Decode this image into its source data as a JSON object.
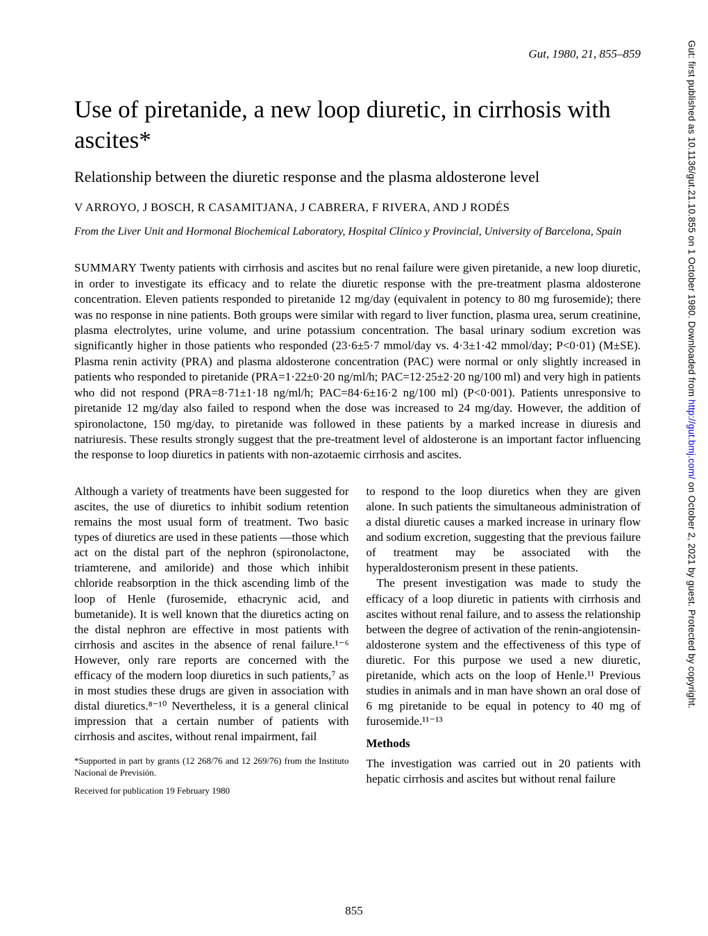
{
  "citation": "Gut, 1980, 21, 855–859",
  "title": "Use of piretanide, a new loop diuretic, in cirrhosis with ascites*",
  "subtitle": "Relationship between the diuretic response and the plasma aldosterone level",
  "authors": "V ARROYO, J BOSCH, R CASAMITJANA, J CABRERA, F RIVERA, AND J RODÉS",
  "affiliation": "From the Liver Unit and Hormonal Biochemical Laboratory, Hospital Clínico y Provincial, University of Barcelona, Spain",
  "summary_label": "SUMMARY",
  "summary_text": "   Twenty patients with cirrhosis and ascites but no renal failure were given piretanide, a new loop diuretic, in order to investigate its efficacy and to relate the diuretic response with the pre-treatment plasma aldosterone concentration. Eleven patients responded to piretanide 12 mg/day (equivalent in potency to 80 mg furosemide); there was no response in nine patients. Both groups were similar with regard to liver function, plasma urea, serum creatinine, plasma electrolytes, urine volume, and urine potassium concentration. The basal urinary sodium excretion was significantly higher in those patients who responded (23·6±5·7 mmol/day vs. 4·3±1·42 mmol/day; P<0·01) (M±SE). Plasma renin activity (PRA) and plasma aldosterone concentration (PAC) were normal or only slightly increased in patients who responded to piretanide (PRA=1·22±0·20 ng/ml/h; PAC=12·25±2·20 ng/100 ml) and very high in patients who did not respond (PRA=8·71±1·18 ng/ml/h; PAC=84·6±16·2 ng/100 ml) (P<0·001). Patients unresponsive to piretanide 12 mg/day also failed to respond when the dose was increased to 24 mg/day. However, the addition of spironolactone, 150 mg/day, to piretanide was followed in these patients by a marked increase in diuresis and natriuresis. These results strongly suggest that the pre-treatment level of aldosterone is an important factor influencing the response to loop diuretics in patients with non-azotaemic cirrhosis and ascites.",
  "left_col_p1": "Although a variety of treatments have been suggested for ascites, the use of diuretics to inhibit sodium retention remains the most usual form of treatment. Two basic types of diuretics are used in these patients —those which act on the distal part of the nephron (spironolactone, triamterene, and amiloride) and those which inhibit chloride reabsorption in the thick ascending limb of the loop of Henle (furosemide, ethacrynic acid, and bumetanide). It is well known that the diuretics acting on the distal nephron are effective in most patients with cirrhosis and ascites in the absence of renal failure.¹⁻⁶ However, only rare reports are concerned with the efficacy of the modern loop diuretics in such patients,⁷ as in most studies these drugs are given in association with distal diuretics.⁸⁻¹⁰ Nevertheless, it is a general clinical impression that a certain number of patients with cirrhosis and ascites, without renal impairment, fail",
  "footnote_funding": "*Supported in part by grants (12 268/76 and 12 269/76) from the Instituto Nacional de Previsión.",
  "footnote_received": "Received for publication 19 February 1980",
  "right_col_p1": "to respond to the loop diuretics when they are given alone. In such patients the simultaneous administration of a distal diuretic causes a marked increase in urinary flow and sodium excretion, suggesting that the previous failure of treatment may be associated with the hyperaldosteronism present in these patients.",
  "right_col_p2": "The present investigation was made to study the efficacy of a loop diuretic in patients with cirrhosis and ascites without renal failure, and to assess the relationship between the degree of activation of the renin-angiotensin-aldosterone system and the effectiveness of this type of diuretic. For this purpose we used a new diuretic, piretanide, which acts on the loop of Henle.¹¹ Previous studies in animals and in man have shown an oral dose of 6 mg piretanide to be equal in potency to 40 mg of furosemide.¹¹⁻¹³",
  "methods_header": "Methods",
  "right_col_p3": "The investigation was carried out in 20 patients with hepatic cirrhosis and ascites but without renal failure",
  "page_number": "855",
  "side_text_prefix": "Gut: first published as 10.1136/gut.21.10.855 on 1 October 1980. Downloaded from ",
  "side_text_link": "http://gut.bmj.com/",
  "side_text_suffix": " on October 2, 2021 by guest. Protected by copyright."
}
